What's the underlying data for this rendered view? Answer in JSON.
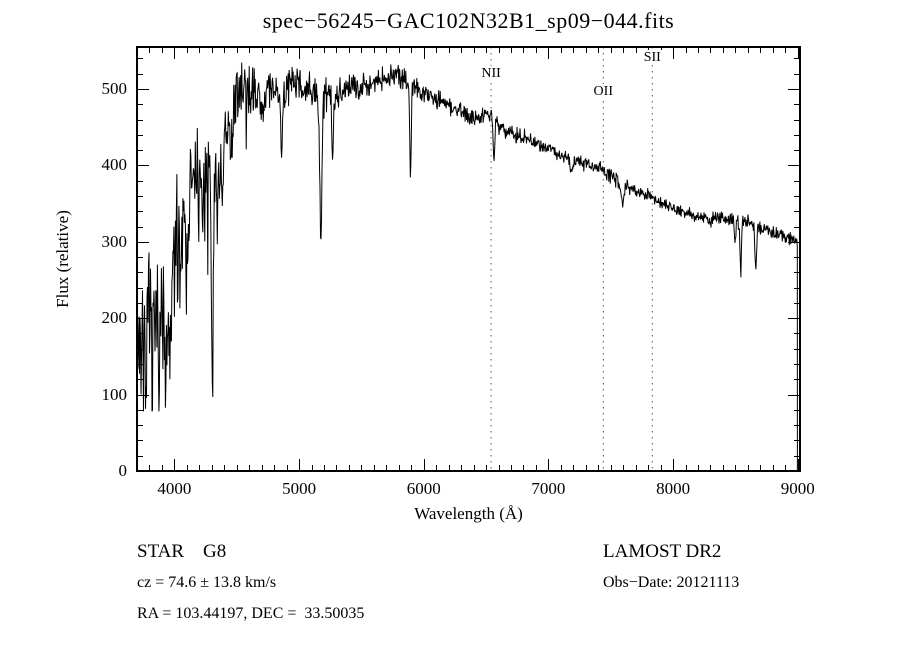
{
  "window": {
    "background": "#ffffff",
    "foreground": "#000000"
  },
  "chart_data": {
    "type": "line",
    "title": "spec−56245−GAC102N32B1_sp09−044.fits",
    "xlabel": "Wavelength (Å)",
    "ylabel": "Flux (relative)",
    "xlim": [
      3700,
      9018
    ],
    "ylim": [
      0,
      555
    ],
    "xticks": [
      4000,
      5000,
      6000,
      7000,
      8000,
      9000
    ],
    "yticks": [
      0,
      100,
      200,
      300,
      400,
      500
    ],
    "x_minor_step": 100,
    "y_minor_step": 20,
    "grid": false,
    "legend": "none",
    "line_color": "#000000",
    "marker_line_color": "#9b3a3a",
    "line_markers": [
      {
        "label": "NII",
        "wavelength": 6540,
        "label_flux": 521
      },
      {
        "label": "OII",
        "wavelength": 7440,
        "label_flux": 498
      },
      {
        "label": "SII",
        "wavelength": 7833,
        "label_flux": 542
      }
    ],
    "series": [
      {
        "name": "spectrum",
        "seed": 7,
        "sample_step_angstrom": 4,
        "cutoff_wavelength": 8997,
        "continuum": [
          [
            3700,
            170
          ],
          [
            3750,
            165
          ],
          [
            3800,
            175
          ],
          [
            3850,
            190
          ],
          [
            3900,
            210
          ],
          [
            3950,
            232
          ],
          [
            4000,
            280
          ],
          [
            4050,
            330
          ],
          [
            4100,
            360
          ],
          [
            4150,
            375
          ],
          [
            4200,
            390
          ],
          [
            4250,
            400
          ],
          [
            4300,
            392
          ],
          [
            4350,
            400
          ],
          [
            4400,
            420
          ],
          [
            4450,
            460
          ],
          [
            4500,
            490
          ],
          [
            4550,
            505
          ],
          [
            4600,
            500
          ],
          [
            4650,
            495
          ],
          [
            4700,
            482
          ],
          [
            4750,
            495
          ],
          [
            4800,
            500
          ],
          [
            4850,
            496
          ],
          [
            4900,
            500
          ],
          [
            4950,
            505
          ],
          [
            5000,
            505
          ],
          [
            5100,
            495
          ],
          [
            5200,
            490
          ],
          [
            5300,
            495
          ],
          [
            5400,
            500
          ],
          [
            5500,
            505
          ],
          [
            5600,
            510
          ],
          [
            5700,
            515
          ],
          [
            5800,
            518
          ],
          [
            5900,
            506
          ],
          [
            6000,
            497
          ],
          [
            6100,
            487
          ],
          [
            6200,
            478
          ],
          [
            6300,
            470
          ],
          [
            6400,
            462
          ],
          [
            6450,
            465
          ],
          [
            6520,
            472
          ],
          [
            6600,
            450
          ],
          [
            6700,
            443
          ],
          [
            6800,
            437
          ],
          [
            6900,
            430
          ],
          [
            7000,
            424
          ],
          [
            7100,
            412
          ],
          [
            7200,
            405
          ],
          [
            7300,
            402
          ],
          [
            7400,
            398
          ],
          [
            7500,
            385
          ],
          [
            7600,
            375
          ],
          [
            7700,
            368
          ],
          [
            7800,
            362
          ],
          [
            7900,
            352
          ],
          [
            8000,
            344
          ],
          [
            8100,
            338
          ],
          [
            8200,
            333
          ],
          [
            8300,
            330
          ],
          [
            8400,
            331
          ],
          [
            8500,
            330
          ],
          [
            8600,
            325
          ],
          [
            8700,
            318
          ],
          [
            8800,
            312
          ],
          [
            8900,
            307
          ],
          [
            8997,
            302
          ]
        ],
        "noise_amp": [
          [
            3700,
            75
          ],
          [
            3800,
            75
          ],
          [
            3900,
            70
          ],
          [
            4000,
            65
          ],
          [
            4100,
            55
          ],
          [
            4200,
            45
          ],
          [
            4300,
            45
          ],
          [
            4400,
            40
          ],
          [
            4500,
            26
          ],
          [
            4600,
            25
          ],
          [
            4700,
            22
          ],
          [
            5000,
            18
          ],
          [
            5200,
            18
          ],
          [
            5500,
            13
          ],
          [
            5800,
            12
          ],
          [
            6000,
            11
          ],
          [
            6300,
            9
          ],
          [
            6600,
            8
          ],
          [
            7000,
            7
          ],
          [
            7500,
            7
          ],
          [
            8000,
            6
          ],
          [
            8500,
            8
          ],
          [
            9000,
            6
          ]
        ],
        "absorption_features": [
          {
            "wavelength": 3933,
            "depth": 130,
            "width": 10
          },
          {
            "wavelength": 3968,
            "depth": 110,
            "width": 10
          },
          {
            "wavelength": 4045,
            "depth": 60,
            "width": 6
          },
          {
            "wavelength": 4101,
            "depth": 85,
            "width": 8
          },
          {
            "wavelength": 4227,
            "depth": 100,
            "width": 6
          },
          {
            "wavelength": 4304,
            "depth": 300,
            "width": 6
          },
          {
            "wavelength": 4340,
            "depth": 90,
            "width": 7
          },
          {
            "wavelength": 4383,
            "depth": 85,
            "width": 6
          },
          {
            "wavelength": 4455,
            "depth": 60,
            "width": 6
          },
          {
            "wavelength": 4861,
            "depth": 85,
            "width": 7
          },
          {
            "wavelength": 5175,
            "depth": 185,
            "width": 9
          },
          {
            "wavelength": 5270,
            "depth": 80,
            "width": 7
          },
          {
            "wavelength": 5893,
            "depth": 120,
            "width": 6
          },
          {
            "wavelength": 6563,
            "depth": 55,
            "width": 6
          },
          {
            "wavelength": 7186,
            "depth": 12,
            "width": 10
          },
          {
            "wavelength": 7594,
            "depth": 22,
            "width": 12
          },
          {
            "wavelength": 8498,
            "depth": 35,
            "width": 6
          },
          {
            "wavelength": 8542,
            "depth": 68,
            "width": 6
          },
          {
            "wavelength": 8662,
            "depth": 60,
            "width": 6
          }
        ]
      }
    ]
  },
  "annotations": {
    "class_label": "STAR    G8",
    "cz_label": "cz = 74.6 ± 13.8 km/s",
    "radec_label": "RA = 103.44197, DEC =  33.50035",
    "survey_label": "LAMOST DR2",
    "obsdate_label": "Obs−Date: 20121113"
  }
}
